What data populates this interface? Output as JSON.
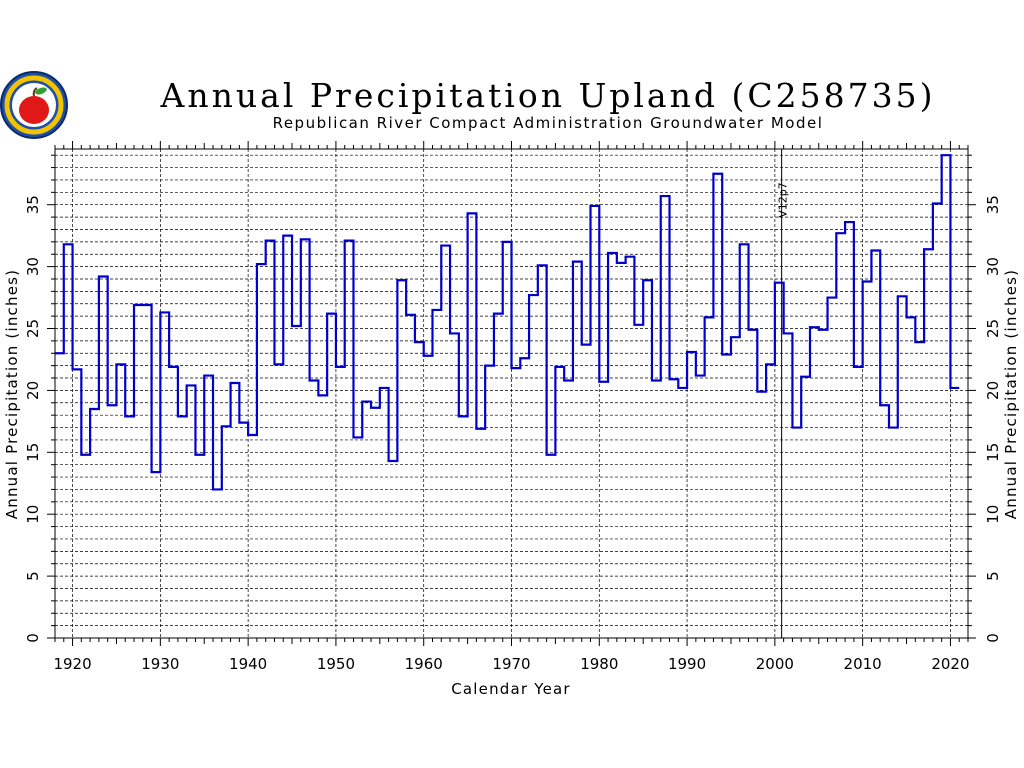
{
  "chart_data": {
    "type": "line",
    "style": "step",
    "title": "Annual Precipitation Upland (C258735)",
    "subtitle": "Republican River Compact Administration Groundwater Model",
    "xlabel": "Calendar Year",
    "ylabel_left": "Annual Precipitation (inches)",
    "ylabel_right": "Annual Precipitation (inches)",
    "xlim": [
      1918,
      2022
    ],
    "ylim": [
      0,
      39.5
    ],
    "xticks": [
      1920,
      1930,
      1940,
      1950,
      1960,
      1970,
      1980,
      1990,
      2000,
      2010,
      2020
    ],
    "yticks": [
      0,
      5,
      10,
      15,
      20,
      25,
      30,
      35
    ],
    "grid": true,
    "series": [
      {
        "color": "#0000cc",
        "x": [
          1918,
          1919,
          1920,
          1921,
          1922,
          1923,
          1924,
          1925,
          1926,
          1927,
          1928,
          1929,
          1930,
          1931,
          1932,
          1933,
          1934,
          1935,
          1936,
          1937,
          1938,
          1939,
          1940,
          1941,
          1942,
          1943,
          1944,
          1945,
          1946,
          1947,
          1948,
          1949,
          1950,
          1951,
          1952,
          1953,
          1954,
          1955,
          1956,
          1957,
          1958,
          1959,
          1960,
          1961,
          1962,
          1963,
          1964,
          1965,
          1966,
          1967,
          1968,
          1969,
          1970,
          1971,
          1972,
          1973,
          1974,
          1975,
          1976,
          1977,
          1978,
          1979,
          1980,
          1981,
          1982,
          1983,
          1984,
          1985,
          1986,
          1987,
          1988,
          1989,
          1990,
          1991,
          1992,
          1993,
          1994,
          1995,
          1996,
          1997,
          1998,
          1999,
          2000,
          2001,
          2002,
          2003,
          2004,
          2005,
          2006,
          2007,
          2008,
          2009,
          2010,
          2011,
          2012,
          2013,
          2014,
          2015,
          2016,
          2017,
          2018,
          2019,
          2020
        ],
        "values": [
          23.0,
          31.8,
          21.7,
          14.8,
          18.5,
          29.2,
          18.8,
          22.1,
          17.9,
          26.9,
          26.9,
          13.4,
          26.3,
          21.9,
          17.9,
          20.4,
          14.8,
          21.2,
          12.0,
          17.1,
          20.6,
          17.4,
          16.4,
          30.2,
          32.1,
          22.1,
          32.5,
          25.2,
          32.2,
          20.8,
          19.6,
          26.2,
          21.9,
          32.1,
          16.2,
          19.1,
          18.6,
          20.2,
          14.3,
          28.9,
          26.1,
          23.9,
          22.8,
          26.5,
          31.7,
          24.6,
          17.9,
          34.3,
          16.9,
          22.0,
          26.2,
          32.0,
          21.8,
          22.6,
          27.7,
          30.1,
          14.8,
          21.9,
          20.8,
          30.4,
          23.7,
          34.9,
          20.7,
          31.1,
          30.3,
          30.8,
          25.3,
          28.9,
          20.8,
          35.7,
          20.9,
          20.2,
          23.1,
          21.2,
          25.9,
          37.5,
          22.9,
          24.3,
          31.8,
          24.9,
          19.9,
          22.1,
          28.7,
          24.6,
          17.0,
          21.1,
          25.1,
          24.9,
          27.5,
          32.7,
          33.6,
          21.9,
          28.8,
          31.3,
          18.8,
          17.0,
          27.6,
          25.9,
          23.9,
          31.4,
          35.1,
          39.0,
          20.2
        ]
      }
    ],
    "annotations": [
      {
        "text": "V12p7",
        "x": 2001
      }
    ]
  }
}
